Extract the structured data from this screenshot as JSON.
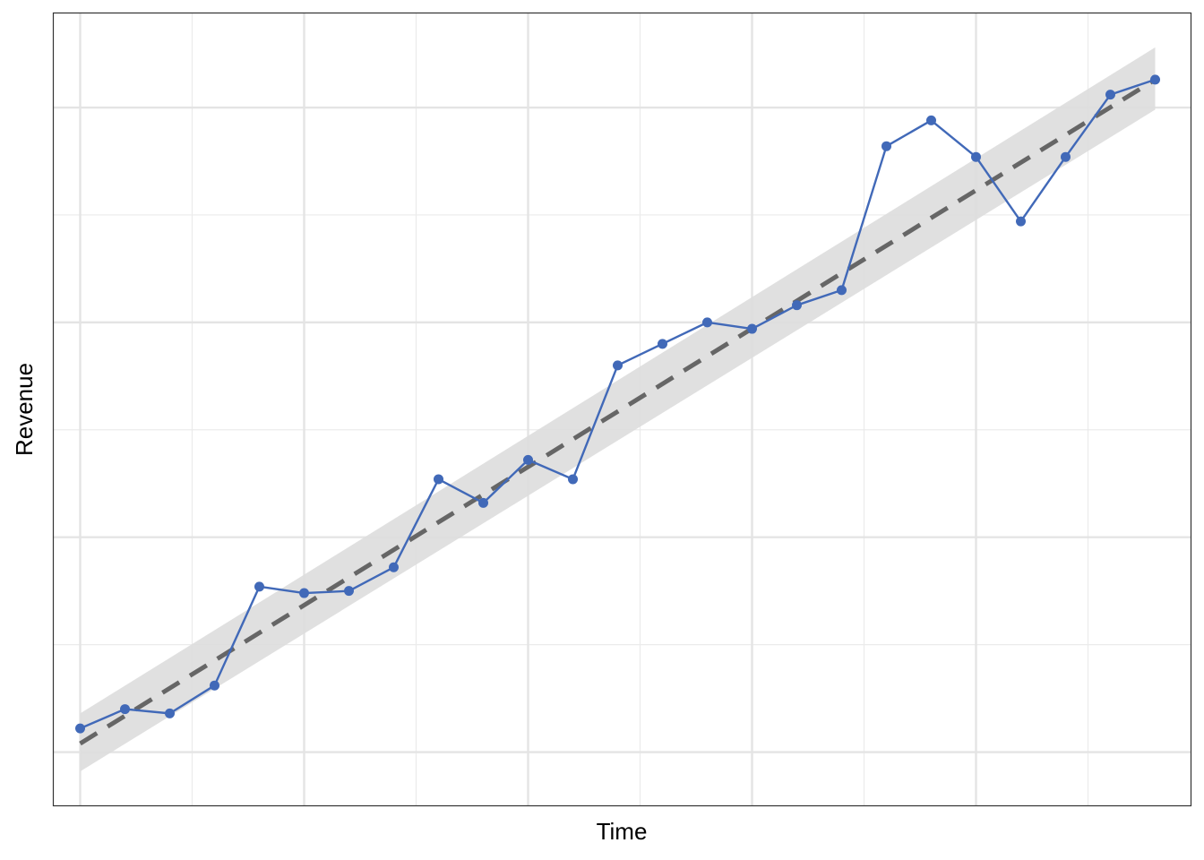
{
  "chart_data": {
    "type": "line",
    "title": "",
    "xlabel": "Time",
    "ylabel": "Revenue",
    "xlim": [
      0.4,
      25.8
    ],
    "ylim": [
      0.5,
      37.4
    ],
    "x_major_ticks": [
      1,
      6,
      11,
      16,
      21
    ],
    "x_minor_ticks": [
      3.5,
      8.5,
      13.5,
      18.5,
      23.5
    ],
    "y_major_ticks": [
      3,
      13,
      23,
      33
    ],
    "y_minor_ticks": [
      8,
      18,
      28
    ],
    "grid": true,
    "tick_labels_shown": false,
    "legend": "none",
    "series": [
      {
        "x": [
          1,
          2,
          3,
          4,
          5,
          6,
          7,
          8,
          9,
          10,
          11,
          12,
          13,
          14,
          15,
          16,
          17,
          18,
          19,
          20,
          21,
          22,
          23,
          24,
          25
        ],
        "values": [
          4.1,
          5.0,
          4.8,
          6.1,
          10.7,
          10.4,
          10.5,
          11.6,
          15.7,
          14.6,
          16.6,
          15.7,
          21.0,
          22.0,
          23.0,
          22.7,
          23.8,
          24.5,
          31.2,
          32.4,
          30.7,
          27.7,
          30.7,
          33.6,
          34.3
        ],
        "color": "#4169B8"
      }
    ],
    "trend": {
      "x": [
        1,
        25
      ],
      "values": [
        3.4,
        34.3
      ],
      "ci_lower": [
        2.1,
        32.9
      ],
      "ci_upper": [
        4.8,
        35.8
      ],
      "line_color": "#666666",
      "band_color": "#DDDDDD"
    }
  }
}
